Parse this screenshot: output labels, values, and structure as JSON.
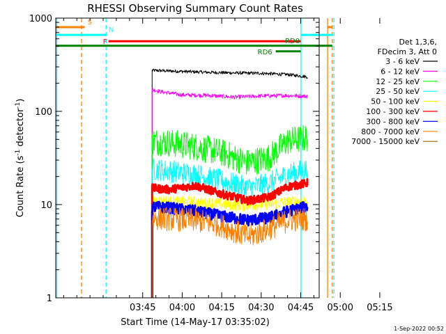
{
  "chart_data": {
    "type": "line",
    "title": "RHESSI Observing Summary Count Rates",
    "xlabel": "Start Time (14-May-17 03:35:02)",
    "ylabel_main": "Count Rate (s",
    "ylabel_sup1": "-1",
    "ylabel_mid": " detector",
    "ylabel_sup2": "-1",
    "ylabel_end": ")",
    "yscale": "log",
    "ylim": [
      1,
      1000
    ],
    "xlim_minutes": [
      -23,
      77
    ],
    "x_ticks": [
      {
        "min": 10,
        "label": "03:45"
      },
      {
        "min": 25,
        "label": "04:00"
      },
      {
        "min": 40,
        "label": "04:15"
      },
      {
        "min": 55,
        "label": "04:30"
      },
      {
        "min": 70,
        "label": "04:45"
      },
      {
        "min": 85,
        "label": "05:00"
      },
      {
        "min": 100,
        "label": "05:15"
      }
    ],
    "y_ticks": [
      {
        "v": 1,
        "label": "1"
      },
      {
        "v": 10,
        "label": "10"
      },
      {
        "v": 100,
        "label": "100"
      },
      {
        "v": 1000,
        "label": "1000"
      }
    ],
    "legend": {
      "header1": "Det 1,3,6,",
      "header2": "FDecim 3, Att 0",
      "entries": [
        {
          "label": "3 - 6 keV",
          "color": "#000000"
        },
        {
          "label": "6 - 12 keV",
          "color": "#ff00ff"
        },
        {
          "label": "12 - 25 keV",
          "color": "#00ff00"
        },
        {
          "label": "25 - 50 keV",
          "color": "#00ffff"
        },
        {
          "label": "50 - 100 keV",
          "color": "#ffff00"
        },
        {
          "label": "100 - 300 keV",
          "color": "#ff0000"
        },
        {
          "label": "300 - 800 keV",
          "color": "#0000ff"
        },
        {
          "label": "800 - 7000 keV",
          "color": "#ff8000"
        },
        {
          "label": "7000 - 15000 keV",
          "color": "#a06000"
        }
      ]
    },
    "data_window_minutes": [
      13.6,
      72.5
    ],
    "series": [
      {
        "name": "3 - 6 keV",
        "color": "#000000",
        "t": [
          13.6,
          25,
          35,
          45,
          55,
          65,
          72.5
        ],
        "v": [
          275,
          268,
          262,
          258,
          256,
          248,
          235
        ]
      },
      {
        "name": "6 - 12 keV",
        "color": "#ff00ff",
        "t": [
          13.6,
          17,
          25,
          35,
          45,
          55,
          65,
          72.5
        ],
        "v": [
          172,
          162,
          150,
          148,
          142,
          146,
          148,
          145
        ]
      },
      {
        "name": "12 - 25 keV",
        "color": "#00ff00",
        "t": [
          13.6,
          20,
          30,
          40,
          50,
          58,
          65,
          72.5
        ],
        "v": [
          48,
          46,
          42,
          36,
          28,
          32,
          48,
          52
        ]
      },
      {
        "name": "25 - 50 keV",
        "color": "#00ffff",
        "t": [
          13.6,
          20,
          30,
          40,
          50,
          58,
          65,
          72.5
        ],
        "v": [
          24,
          23,
          21,
          18,
          15,
          17,
          21,
          24
        ]
      },
      {
        "name": "50 - 100 keV",
        "color": "#ffff00",
        "t": [
          13.6,
          30,
          50,
          72.5
        ],
        "v": [
          11,
          10.5,
          9.8,
          11
        ]
      },
      {
        "name": "100 - 300 keV",
        "color": "#ff0000",
        "t": [
          13.6,
          20,
          30,
          40,
          50,
          58,
          65,
          72.5
        ],
        "v": [
          15,
          14.5,
          16,
          13,
          11,
          12,
          15.5,
          17
        ]
      },
      {
        "name": "300 - 800 keV",
        "color": "#0000ff",
        "t": [
          13.6,
          20,
          30,
          40,
          50,
          58,
          65,
          72.5
        ],
        "v": [
          9.5,
          9.2,
          8.5,
          7.5,
          6.8,
          7.2,
          8.5,
          9.5
        ]
      },
      {
        "name": "800 - 7000 keV",
        "color": "#ff8000",
        "t": [
          13.6,
          20,
          30,
          40,
          50,
          58,
          65,
          72.5
        ],
        "v": [
          7.2,
          7,
          6.8,
          6,
          4.5,
          5.5,
          6.8,
          7
        ]
      }
    ],
    "status_bars": [
      {
        "label": "S",
        "color": "#ff8000",
        "v": 800,
        "segments": [
          [
            -23,
            -12
          ],
          [
            80.3,
            82
          ]
        ],
        "label_at": -12
      },
      {
        "label": "N",
        "color": "#00ffff",
        "v": 660,
        "segments": [
          [
            -23,
            -4
          ],
          [
            70,
            82
          ]
        ],
        "label_at": -4
      },
      {
        "label": "F",
        "color": "#ff0000",
        "v": 565,
        "segments": [
          [
            -3,
            70
          ]
        ],
        "label_at": -3.5
      },
      {
        "label": "RD0",
        "color": "#008000",
        "v": 505,
        "segments": [
          [
            -23,
            82
          ]
        ],
        "label_at": 63
      },
      {
        "label": "RD6",
        "color": "#008000",
        "v": 440,
        "segments": [
          [
            60.5,
            70
          ]
        ],
        "label_at": 60.5
      }
    ],
    "vlines": [
      {
        "min": -22.6,
        "color": "#00ffff",
        "dashed": false
      },
      {
        "min": -13.2,
        "color": "#ff8000",
        "dashed": true
      },
      {
        "min": -3.9,
        "color": "#00ffff",
        "dashed": true
      },
      {
        "min": 70.1,
        "color": "#00ffff",
        "dashed": false
      },
      {
        "min": 80.2,
        "color": "#ff8000",
        "dashed": false
      },
      {
        "min": 82.0,
        "color": "#ff8000",
        "dashed": true
      },
      {
        "min": 82.6,
        "color": "#00ffff",
        "dashed": true
      }
    ],
    "timestamp": "1-Sep-2022 00:52"
  }
}
